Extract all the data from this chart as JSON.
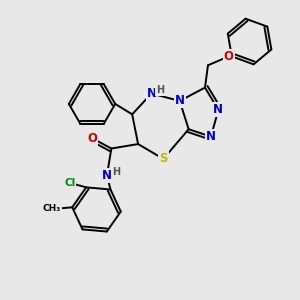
{
  "background_color": "#e8e8e8",
  "bond_color": "#000000",
  "bond_width": 1.4,
  "figsize": [
    3.0,
    3.0
  ],
  "dpi": 100,
  "atoms": {
    "S": {
      "color": "#bbbb00",
      "fontsize": 8.5
    },
    "N": {
      "color": "#0000cc",
      "fontsize": 8.5
    },
    "O": {
      "color": "#cc0000",
      "fontsize": 8.5
    },
    "H": {
      "color": "#555555",
      "fontsize": 7.0
    },
    "Cl": {
      "color": "#008800",
      "fontsize": 7.5
    }
  },
  "xlim": [
    0,
    10
  ],
  "ylim": [
    0,
    10
  ]
}
